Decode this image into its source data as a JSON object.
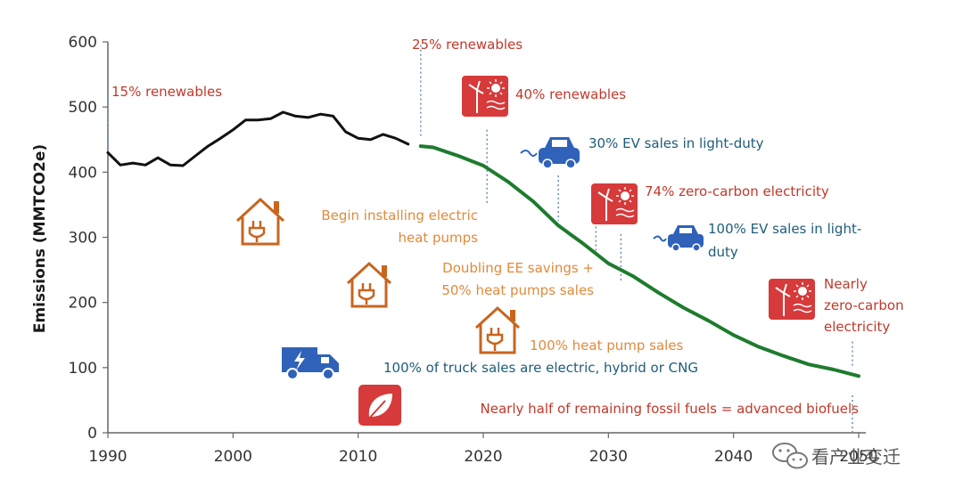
{
  "chart_data": {
    "type": "line",
    "ylabel": "Emissions (MMTCO2e)",
    "xlabel": "",
    "xlim": [
      1990,
      2050
    ],
    "ylim": [
      0,
      600
    ],
    "x_ticks": [
      1990,
      2000,
      2010,
      2020,
      2030,
      2040,
      2050
    ],
    "y_ticks": [
      0,
      100,
      200,
      300,
      400,
      500,
      600
    ],
    "grid": false,
    "series": [
      {
        "color": "#111111",
        "points": [
          [
            1990,
            430
          ],
          [
            1991,
            411
          ],
          [
            1992,
            414
          ],
          [
            1993,
            411
          ],
          [
            1994,
            422
          ],
          [
            1995,
            411
          ],
          [
            1996,
            410
          ],
          [
            1997,
            425
          ],
          [
            1998,
            440
          ],
          [
            1999,
            452
          ],
          [
            2000,
            465
          ],
          [
            2001,
            480
          ],
          [
            2002,
            480
          ],
          [
            2003,
            482
          ],
          [
            2004,
            492
          ],
          [
            2005,
            486
          ],
          [
            2006,
            484
          ],
          [
            2007,
            489
          ],
          [
            2008,
            486
          ],
          [
            2009,
            462
          ],
          [
            2010,
            452
          ],
          [
            2011,
            450
          ],
          [
            2012,
            458
          ],
          [
            2013,
            452
          ],
          [
            2014,
            443
          ]
        ]
      },
      {
        "color": "#1e7b2e",
        "points": [
          [
            2015,
            440
          ],
          [
            2016,
            438
          ],
          [
            2018,
            425
          ],
          [
            2020,
            410
          ],
          [
            2022,
            385
          ],
          [
            2024,
            355
          ],
          [
            2026,
            318
          ],
          [
            2028,
            290
          ],
          [
            2030,
            260
          ],
          [
            2032,
            240
          ],
          [
            2034,
            215
          ],
          [
            2036,
            192
          ],
          [
            2038,
            172
          ],
          [
            2040,
            150
          ],
          [
            2042,
            132
          ],
          [
            2044,
            118
          ],
          [
            2046,
            105
          ],
          [
            2048,
            97
          ],
          [
            2050,
            87
          ]
        ]
      }
    ],
    "annotations": [
      {
        "text": "15% renewables",
        "color": "#c0392b",
        "anchor": [
          1990,
          518
        ],
        "line_to": 430
      },
      {
        "text": "25% renewables",
        "color": "#c0392b",
        "anchor": [
          2015,
          595
        ],
        "line_to": 455
      },
      {
        "text": "40% renewables",
        "color": "#c0392b",
        "icon": "wind-solar-icon",
        "line_from": [
          2020.3,
          465
        ],
        "line_to": 350
      },
      {
        "text": "30% EV sales in light-duty",
        "color": "#1f5c7a",
        "icon": "ev-car-icon",
        "line_from": [
          2026,
          395
        ],
        "line_to": 325
      },
      {
        "text": "74% zero-carbon electricity",
        "color": "#c0392b",
        "icon": "wind-solar-icon",
        "line_from": [
          2029,
          330
        ],
        "line_to": 272
      },
      {
        "text": "100% EV sales in light-duty",
        "color": "#1f5c7a",
        "icon": "ev-car-icon",
        "line_from": [
          2031,
          305
        ],
        "line_to": 230
      },
      {
        "text": "Nearly zero-carbon electricity",
        "color": "#c0392b",
        "icon": "wind-solar-icon",
        "line_from": [
          2049.5,
          140
        ],
        "line_to": 100
      },
      {
        "text": "Begin installing electric heat pumps",
        "color": "#e08a3c",
        "icon": "house-plug-icon"
      },
      {
        "text": "Doubling EE savings + 50% heat pumps sales",
        "color": "#e08a3c",
        "icon": "house-plug-icon"
      },
      {
        "text": "100% heat pump sales",
        "color": "#e08a3c",
        "icon": "house-plug-icon"
      },
      {
        "text": "100% of truck sales are electric, hybrid or CNG",
        "color": "#1f5c7a",
        "icon": "electric-truck-icon"
      },
      {
        "text": "Nearly half of remaining fossil fuels = advanced biofuels",
        "color": "#c0392b",
        "icon": "leaf-icon",
        "line_from": [
          2049.5,
          0
        ],
        "line_to": 60
      }
    ]
  },
  "labels": {
    "ann_15": "15% renewables",
    "ann_25": "25% renewables",
    "ann_40": "40% renewables",
    "ann_ev30": "30% EV sales in light-duty",
    "ann_74": "74% zero-carbon electricity",
    "ann_ev100_l1": "100% EV sales in light-",
    "ann_ev100_l2": "duty",
    "ann_nzc_l1": "Nearly",
    "ann_nzc_l2": "zero-carbon",
    "ann_nzc_l3": "electricity",
    "ann_hp_l1": "Begin installing electric",
    "ann_hp_l2": "heat pumps",
    "ann_ee_l1": "Doubling EE savings +",
    "ann_ee_l2": "50% heat pumps sales",
    "ann_hp100": "100% heat pump sales",
    "ann_truck": "100% of truck sales are electric, hybrid or CNG",
    "ann_bio": "Nearly half of remaining fossil fuels = advanced biofuels",
    "watermark": "看产业变迁"
  },
  "colors": {
    "red": "#c0392b",
    "orange": "#e08a3c",
    "blue": "#1f5c7a",
    "truck_blue": "#2f62b8",
    "icon_red": "#d63a3a",
    "green": "#1e7b2e",
    "black": "#111111"
  }
}
